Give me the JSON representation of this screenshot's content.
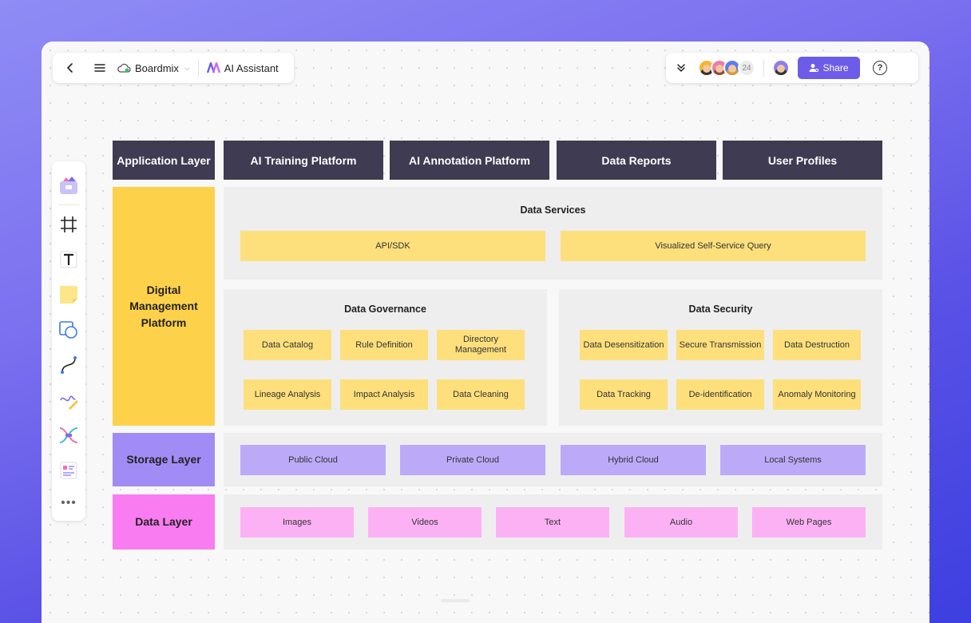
{
  "toolbar": {
    "brand_name": "Boardmix",
    "ai_assistant_label": "AI Assistant",
    "collaborator_count": "24",
    "share_label": "Share"
  },
  "tools": [
    "logo-cube",
    "frame",
    "text",
    "sticky-note",
    "shape",
    "connector",
    "pen",
    "mindmap",
    "template",
    "more"
  ],
  "diagram": {
    "header_row": {
      "layer_label": "Application Layer",
      "items": [
        "AI Training Platform",
        "AI Annotation Platform",
        "Data Reports",
        "User Profiles"
      ]
    },
    "digital_platform": {
      "layer_label": "Digital Management Platform",
      "data_services": {
        "title": "Data Services",
        "items": [
          "API/SDK",
          "Visualized Self-Service Query"
        ]
      },
      "data_governance": {
        "title": "Data Governance",
        "items": [
          "Data Catalog",
          "Rule Definition",
          "Directory Management",
          "Lineage Analysis",
          "Impact Analysis",
          "Data Cleaning"
        ]
      },
      "data_security": {
        "title": "Data Security",
        "items": [
          "Data Desensitization",
          "Secure Transmission",
          "Data Destruction",
          "Data Tracking",
          "De-identification",
          "Anomaly Monitoring"
        ]
      }
    },
    "storage_layer": {
      "layer_label": "Storage Layer",
      "items": [
        "Public Cloud",
        "Private Cloud",
        "Hybrid Cloud",
        "Local Systems"
      ]
    },
    "data_layer": {
      "layer_label": "Data Layer",
      "items": [
        "Images",
        "Videos",
        "Text",
        "Audio",
        "Web Pages"
      ]
    }
  },
  "colors": {
    "header_bg": "#3f3b52",
    "digital_platform_bg": "#fdd24a",
    "service_box": "#fddf7c",
    "storage_bg": "#a18cf5",
    "storage_box": "#bcaaf8",
    "data_layer_bg": "#f97cf0",
    "data_box": "#fcb1f5",
    "share_button": "#6c5ce7"
  }
}
